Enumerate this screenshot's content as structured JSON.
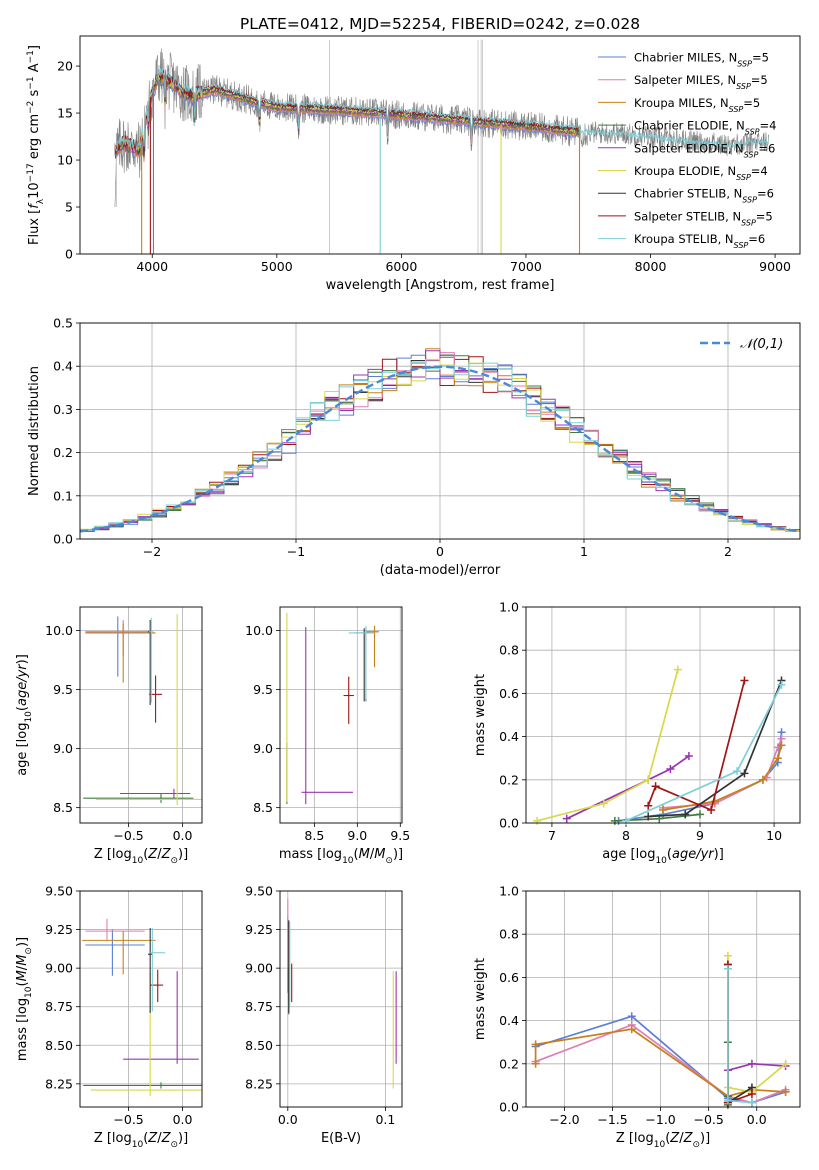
{
  "figure_title": "PLATE=0412, MJD=52254, FIBERID=0242, z=0.028",
  "palette": [
    "#5b7fd6",
    "#e07fb5",
    "#c8801a",
    "#3f7d3f",
    "#9a35b3",
    "#d8d84a",
    "#333333",
    "#a01515",
    "#7ecfd8"
  ],
  "series_names": [
    {
      "base": "Chabrier MILES, N",
      "sub": "SSP",
      "tail": "=5"
    },
    {
      "base": "Salpeter MILES, N",
      "sub": "SSP",
      "tail": "=5"
    },
    {
      "base": "Kroupa MILES, N",
      "sub": "SSP",
      "tail": "=5"
    },
    {
      "base": "Chabrier ELODIE, N",
      "sub": "SSP",
      "tail": "=4"
    },
    {
      "base": "Salpeter ELODIE, N",
      "sub": "SSP",
      "tail": "=6"
    },
    {
      "base": "Kroupa ELODIE, N",
      "sub": "SSP",
      "tail": "=4"
    },
    {
      "base": "Chabrier STELIB, N",
      "sub": "SSP",
      "tail": "=6"
    },
    {
      "base": "Salpeter STELIB, N",
      "sub": "SSP",
      "tail": "=5"
    },
    {
      "base": "Kroupa STELIB, N",
      "sub": "SSP",
      "tail": "=6"
    }
  ],
  "chart_data": [
    {
      "id": "spectrum",
      "type": "line",
      "xlabel": "wavelength [Angstrom, rest frame]",
      "ylabel": "Flux [f_λ10^-17 erg cm^-2 s^-1 A^-1]",
      "xlim": [
        3420,
        9200
      ],
      "ylim": [
        0,
        23.2
      ],
      "xticks": [
        4000,
        5000,
        6000,
        7000,
        8000,
        9000
      ],
      "yticks": [
        0,
        5,
        10,
        15,
        20
      ],
      "grid": false,
      "legend": "upper right",
      "observed_color": "#808080",
      "model_range": [
        3700,
        7430
      ],
      "continuum_points": [
        [
          3700,
          10.8
        ],
        [
          3760,
          11.8
        ],
        [
          3900,
          11.0
        ],
        [
          3980,
          16.5
        ],
        [
          4050,
          19.0
        ],
        [
          4150,
          18.2
        ],
        [
          4300,
          16.8
        ],
        [
          4500,
          17.5
        ],
        [
          4800,
          16.3
        ],
        [
          5000,
          15.6
        ],
        [
          5500,
          15.3
        ],
        [
          6000,
          14.8
        ],
        [
          6500,
          14.2
        ],
        [
          7000,
          13.6
        ],
        [
          7400,
          13.0
        ],
        [
          7800,
          12.8
        ],
        [
          8200,
          12.2
        ],
        [
          8600,
          11.6
        ],
        [
          8900,
          11.9
        ]
      ]
    },
    {
      "id": "residuals",
      "type": "histogram",
      "xlabel": "(data-model)/error",
      "ylabel": "Normed distribution",
      "xlim": [
        -2.5,
        2.5
      ],
      "ylim": [
        0,
        0.5
      ],
      "xticks": [
        -2,
        -1,
        0,
        1,
        2
      ],
      "yticks": [
        0.0,
        0.1,
        0.2,
        0.3,
        0.4,
        0.5
      ],
      "grid": true,
      "legend": "upper right",
      "reference_label": "𝒩(0,1)",
      "reference_color": "#4a88d8",
      "bin_width": 0.1
    },
    {
      "id": "age-vs-Z",
      "type": "errorbar",
      "xlabel": "Z [log10(Z/Z⊙)]",
      "ylabel": "age [log10(age/yr)]",
      "xlim": [
        -0.95,
        0.18
      ],
      "ylim": [
        8.37,
        10.2
      ],
      "xticks": [
        -0.5,
        0.0
      ],
      "yticks": [
        8.5,
        9.0,
        9.5,
        10.0
      ],
      "grid": true,
      "points": [
        {
          "x": -0.6,
          "xerr": [
            0.3,
            0.3
          ],
          "y": 9.99,
          "yerr": [
            0.38,
            0.13
          ]
        },
        {
          "x": -0.55,
          "xerr": [
            0.35,
            0.22
          ],
          "y": 9.99,
          "yerr": [
            0.2,
            0.1
          ]
        },
        {
          "x": -0.55,
          "xerr": [
            0.35,
            0.3
          ],
          "y": 9.98,
          "yerr": [
            0.42,
            0.08
          ]
        },
        {
          "x": -0.2,
          "xerr": [
            0.72,
            0.3
          ],
          "y": 8.58,
          "yerr": [
            0.04,
            0.04
          ]
        },
        {
          "x": -0.08,
          "xerr": [
            0.5,
            0.15
          ],
          "y": 8.62,
          "yerr": [
            0.04,
            0.04
          ]
        },
        {
          "x": -0.05,
          "xerr": [
            0.75,
            0.25
          ],
          "y": 8.57,
          "yerr": [
            0.05,
            1.57
          ]
        },
        {
          "x": -0.3,
          "xerr": [
            0.02,
            0.0
          ],
          "y": 9.99,
          "yerr": [
            0.62,
            0.1
          ]
        },
        {
          "x": -0.25,
          "xerr": [
            0.06,
            0.06
          ],
          "y": 9.46,
          "yerr": [
            0.24,
            0.16
          ]
        },
        {
          "x": -0.29,
          "xerr": [
            0.02,
            0.02
          ],
          "y": 9.99,
          "yerr": [
            0.6,
            0.12
          ]
        }
      ]
    },
    {
      "id": "age-vs-mass",
      "type": "errorbar",
      "xlabel": "mass [log10(M/M⊙)]",
      "ylabel": "",
      "xlim": [
        8.1,
        9.52
      ],
      "ylim": [
        8.37,
        10.2
      ],
      "xticks": [
        8.5,
        9.0,
        9.5
      ],
      "yticks": [
        8.5,
        9.0,
        9.5,
        10.0
      ],
      "grid": true,
      "points": [
        {
          "x": 9.1,
          "xerr": [
            0.05,
            0.05
          ],
          "y": 9.98,
          "yerr": [
            0.58,
            0.04
          ]
        },
        {
          "x": 9.2,
          "xerr": [
            0.1,
            0.05
          ],
          "y": 9.99,
          "yerr": [
            0.05,
            0.05
          ]
        },
        {
          "x": 9.2,
          "xerr": [
            0.1,
            0.05
          ],
          "y": 9.99,
          "yerr": [
            0.3,
            0.05
          ]
        },
        {
          "x": 8.18,
          "xerr": [
            0.0,
            0.0
          ],
          "y": 8.55,
          "yerr": [
            0.02,
            0.5
          ]
        },
        {
          "x": 8.4,
          "xerr": [
            0.05,
            0.55
          ],
          "y": 8.63,
          "yerr": [
            0.1,
            1.4
          ]
        },
        {
          "x": 8.18,
          "xerr": [
            0.0,
            0.0
          ],
          "y": 8.6,
          "yerr": [
            0.05,
            1.55
          ]
        },
        {
          "x": 9.08,
          "xerr": [
            0.12,
            0.06
          ],
          "y": 9.98,
          "yerr": [
            0.58,
            0.04
          ]
        },
        {
          "x": 8.9,
          "xerr": [
            0.06,
            0.06
          ],
          "y": 9.45,
          "yerr": [
            0.24,
            0.16
          ]
        },
        {
          "x": 9.1,
          "xerr": [
            0.2,
            0.1
          ],
          "y": 9.98,
          "yerr": [
            0.56,
            0.06
          ]
        }
      ]
    },
    {
      "id": "mass-weight-vs-age",
      "type": "line",
      "xlabel": "age [log10(age/yr)]",
      "ylabel": "mass weight",
      "xlim": [
        6.65,
        10.35
      ],
      "ylim": [
        0.0,
        1.0
      ],
      "xticks": [
        7,
        8,
        9,
        10
      ],
      "yticks": [
        0.0,
        0.2,
        0.4,
        0.6,
        0.8,
        1.0
      ],
      "grid": true,
      "series": [
        {
          "x": [
            7.9,
            8.5,
            9.2,
            9.85,
            10.05,
            10.1
          ],
          "y": [
            0.01,
            0.04,
            0.09,
            0.2,
            0.28,
            0.42
          ]
        },
        {
          "x": [
            8.5,
            9.2,
            9.9,
            10.05,
            10.1
          ],
          "y": [
            0.07,
            0.09,
            0.21,
            0.35,
            0.39
          ]
        },
        {
          "x": [
            8.5,
            9.2,
            9.85,
            10.05,
            10.1
          ],
          "y": [
            0.06,
            0.1,
            0.2,
            0.3,
            0.36
          ]
        },
        {
          "x": [
            7.85,
            8.45,
            9.0
          ],
          "y": [
            0.01,
            0.02,
            0.04
          ]
        },
        {
          "x": [
            7.2,
            8.3,
            8.6,
            8.85
          ],
          "y": [
            0.02,
            0.2,
            0.25,
            0.31
          ]
        },
        {
          "x": [
            6.8,
            7.7,
            8.3,
            8.7
          ],
          "y": [
            0.01,
            0.09,
            0.2,
            0.71
          ]
        },
        {
          "x": [
            8.3,
            8.8,
            9.6,
            10.1
          ],
          "y": [
            0.03,
            0.04,
            0.23,
            0.66
          ]
        },
        {
          "x": [
            8.3,
            8.4,
            9.15,
            9.6
          ],
          "y": [
            0.08,
            0.17,
            0.06,
            0.66
          ]
        },
        {
          "x": [
            8.0,
            9.5,
            10.1
          ],
          "y": [
            0.01,
            0.24,
            0.64
          ]
        }
      ]
    },
    {
      "id": "mass-vs-Z",
      "type": "errorbar",
      "xlabel": "Z [log10(Z/Z⊙)]",
      "ylabel": "mass [log10(M/M⊙)]",
      "xlim": [
        -0.95,
        0.18
      ],
      "ylim": [
        8.1,
        9.5
      ],
      "xticks": [
        -0.5,
        0.0
      ],
      "yticks": [
        8.25,
        8.5,
        8.75,
        9.0,
        9.25,
        9.5
      ],
      "grid": true,
      "points": [
        {
          "x": -0.65,
          "xerr": [
            0.25,
            0.3
          ],
          "y": 9.15,
          "yerr": [
            0.2,
            0.1
          ]
        },
        {
          "x": -0.7,
          "xerr": [
            0.2,
            0.35
          ],
          "y": 9.24,
          "yerr": [
            0.06,
            0.08
          ]
        },
        {
          "x": -0.55,
          "xerr": [
            0.38,
            0.3
          ],
          "y": 9.18,
          "yerr": [
            0.22,
            0.06
          ]
        },
        {
          "x": -0.2,
          "xerr": [
            0.72,
            0.4
          ],
          "y": 8.24,
          "yerr": [
            0.02,
            0.02
          ]
        },
        {
          "x": -0.05,
          "xerr": [
            0.5,
            0.2
          ],
          "y": 8.41,
          "yerr": [
            0.03,
            0.57
          ]
        },
        {
          "x": -0.3,
          "xerr": [
            0.55,
            0.5
          ],
          "y": 8.21,
          "yerr": [
            0.04,
            0.76
          ]
        },
        {
          "x": -0.3,
          "xerr": [
            0.02,
            0.02
          ],
          "y": 9.09,
          "yerr": [
            0.38,
            0.17
          ]
        },
        {
          "x": -0.23,
          "xerr": [
            0.07,
            0.05
          ],
          "y": 8.89,
          "yerr": [
            0.11,
            0.1
          ]
        },
        {
          "x": -0.28,
          "xerr": [
            0.02,
            0.12
          ],
          "y": 9.1,
          "yerr": [
            0.38,
            0.16
          ]
        }
      ]
    },
    {
      "id": "mass-vs-ebv",
      "type": "errorbar",
      "xlabel": "E(B-V)",
      "ylabel": "",
      "xlim": [
        -0.008,
        0.117
      ],
      "ylim": [
        8.1,
        9.5
      ],
      "xticks": [
        0.0,
        0.1
      ],
      "yticks": [
        8.25,
        8.5,
        8.75,
        9.0,
        9.25,
        9.5
      ],
      "grid": true,
      "points": [
        {
          "x": 0.0,
          "xerr": [
            0,
            0
          ],
          "y": 9.14,
          "yerr": [
            0.3,
            0.2
          ]
        },
        {
          "x": 0.0,
          "xerr": [
            0,
            0
          ],
          "y": 9.25,
          "yerr": [
            0.25,
            0.2
          ]
        },
        {
          "x": 0.001,
          "xerr": [
            0,
            0
          ],
          "y": 9.15,
          "yerr": [
            0.35,
            0.15
          ]
        },
        {
          "x": 0.001,
          "xerr": [
            0,
            0
          ],
          "y": 8.9,
          "yerr": [
            0.2,
            0.1
          ]
        },
        {
          "x": 0.111,
          "xerr": [
            0,
            0
          ],
          "y": 8.6,
          "yerr": [
            0.22,
            0.38
          ]
        },
        {
          "x": 0.108,
          "xerr": [
            0,
            0
          ],
          "y": 8.52,
          "yerr": [
            0.3,
            0.46
          ]
        },
        {
          "x": 0.001,
          "xerr": [
            0,
            0
          ],
          "y": 9.05,
          "yerr": [
            0.34,
            0.26
          ]
        },
        {
          "x": 0.004,
          "xerr": [
            0,
            0
          ],
          "y": 8.9,
          "yerr": [
            0.12,
            0.13
          ]
        },
        {
          "x": 0.002,
          "xerr": [
            0,
            0
          ],
          "y": 9.1,
          "yerr": [
            0.34,
            0.2
          ]
        }
      ]
    },
    {
      "id": "mass-weight-vs-Z",
      "type": "line",
      "xlabel": "Z [log10(Z/Z⊙)]",
      "ylabel": "mass weight",
      "xlim": [
        -2.4,
        0.45
      ],
      "ylim": [
        0.0,
        1.0
      ],
      "xticks": [
        -2.0,
        -1.5,
        -1.0,
        -0.5,
        0.0
      ],
      "yticks": [
        0.0,
        0.2,
        0.4,
        0.6,
        0.8,
        1.0
      ],
      "grid": true,
      "series": [
        {
          "x": [
            -2.3,
            -1.3,
            -0.3,
            -0.05,
            0.3
          ],
          "y": [
            0.28,
            0.42,
            0.04,
            0.02,
            0.07
          ]
        },
        {
          "x": [
            -2.3,
            -1.3,
            -0.3,
            -0.05,
            0.3
          ],
          "y": [
            0.21,
            0.38,
            0.05,
            0.02,
            0.08
          ]
        },
        {
          "x": [
            -2.3,
            -2.3,
            -1.3,
            -0.3,
            -0.05,
            0.3
          ],
          "y": [
            0.2,
            0.29,
            0.36,
            0.05,
            0.08,
            0.07
          ]
        },
        {
          "x": [
            -0.3,
            -0.3,
            -0.3
          ],
          "y": [
            0.01,
            0.05,
            0.3
          ]
        },
        {
          "x": [
            -0.3,
            -0.05,
            0.3
          ],
          "y": [
            0.17,
            0.2,
            0.19
          ]
        },
        {
          "x": [
            -0.3,
            -0.3,
            -0.05,
            0.3
          ],
          "y": [
            0.7,
            0.09,
            0.07,
            0.2
          ]
        },
        {
          "x": [
            -0.3,
            -0.3,
            -0.05
          ],
          "y": [
            0.66,
            0.02,
            0.09
          ]
        },
        {
          "x": [
            -0.3,
            -0.3,
            -0.05
          ],
          "y": [
            0.66,
            0.02,
            0.06
          ]
        },
        {
          "x": [
            -0.3,
            -0.3,
            -0.05
          ],
          "y": [
            0.64,
            0.03,
            0.02
          ]
        }
      ]
    }
  ]
}
